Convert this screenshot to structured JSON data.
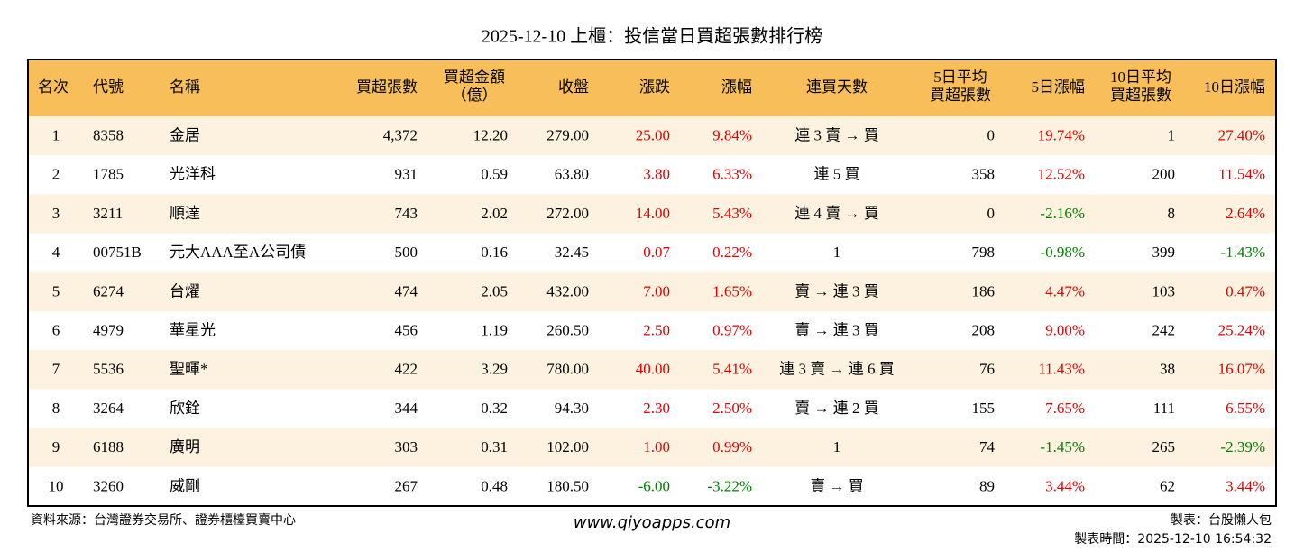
{
  "header": {
    "title": "2025-12-10 上櫃：投信當日買超張數排行榜"
  },
  "table": {
    "columns": [
      [
        "名次"
      ],
      [
        "代號"
      ],
      [
        "名稱"
      ],
      [
        "買超張數"
      ],
      [
        "買超金額",
        "（億）"
      ],
      [
        "收盤"
      ],
      [
        "漲跌"
      ],
      [
        "漲幅"
      ],
      [
        "連買天數"
      ],
      [
        "5日平均",
        "買超張數"
      ],
      [
        "5日漲幅"
      ],
      [
        "10日平均",
        "買超張數"
      ],
      [
        "10日漲幅"
      ]
    ],
    "rows": [
      [
        "1",
        "8358",
        "金居",
        "4,372",
        "12.20",
        "279.00",
        "25.00",
        "9.84%",
        "連 3 賣 → 買",
        "0",
        "19.74%",
        "1",
        "27.40%"
      ],
      [
        "2",
        "1785",
        "光洋科",
        "931",
        "0.59",
        "63.80",
        "3.80",
        "6.33%",
        "連 5 買",
        "358",
        "12.52%",
        "200",
        "11.54%"
      ],
      [
        "3",
        "3211",
        "順達",
        "743",
        "2.02",
        "272.00",
        "14.00",
        "5.43%",
        "連 4 賣 → 買",
        "0",
        "-2.16%",
        "8",
        "2.64%"
      ],
      [
        "4",
        "00751B",
        "元大AAA至A公司債",
        "500",
        "0.16",
        "32.45",
        "0.07",
        "0.22%",
        "1",
        "798",
        "-0.98%",
        "399",
        "-1.43%"
      ],
      [
        "5",
        "6274",
        "台燿",
        "474",
        "2.05",
        "432.00",
        "7.00",
        "1.65%",
        "賣 → 連 3 買",
        "186",
        "4.47%",
        "103",
        "0.47%"
      ],
      [
        "6",
        "4979",
        "華星光",
        "456",
        "1.19",
        "260.50",
        "2.50",
        "0.97%",
        "賣 → 連 3 買",
        "208",
        "9.00%",
        "242",
        "25.24%"
      ],
      [
        "7",
        "5536",
        "聖暉*",
        "422",
        "3.29",
        "780.00",
        "40.00",
        "5.41%",
        "連 3 賣 → 連 6 買",
        "76",
        "11.43%",
        "38",
        "16.07%"
      ],
      [
        "8",
        "3264",
        "欣銓",
        "344",
        "0.32",
        "94.30",
        "2.30",
        "2.50%",
        "賣 → 連 2 買",
        "155",
        "7.65%",
        "111",
        "6.55%"
      ],
      [
        "9",
        "6188",
        "廣明",
        "303",
        "0.31",
        "102.00",
        "1.00",
        "0.99%",
        "1",
        "74",
        "-1.45%",
        "265",
        "-2.39%"
      ],
      [
        "10",
        "3260",
        "威剛",
        "267",
        "0.48",
        "180.50",
        "-6.00",
        "-3.22%",
        "賣 → 買",
        "89",
        "3.44%",
        "62",
        "3.44%"
      ]
    ]
  },
  "footer": {
    "source": "資料來源：台灣證券交易所、證券櫃檯買賣中心",
    "website": "www.qiyoapps.com",
    "maker": "製表：台股懶人包",
    "time": "製表時間：2025-12-10 16:54:32"
  }
}
